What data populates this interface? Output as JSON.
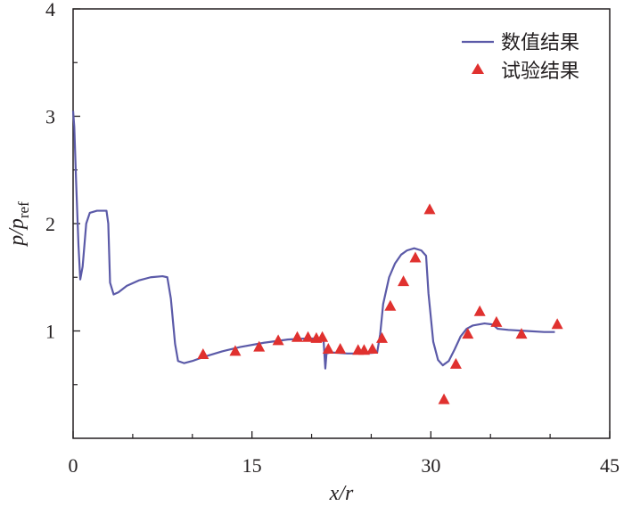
{
  "chart_data": {
    "type": "line",
    "title": "",
    "xlabel": "x/r",
    "ylabel_main": "p/p",
    "ylabel_sub": "ref",
    "xlim": [
      0,
      45
    ],
    "ylim": [
      0,
      4
    ],
    "x_ticks": [
      0,
      15,
      30,
      45
    ],
    "y_ticks": [
      1,
      2,
      3,
      4
    ],
    "x_tick_labels": [
      "0",
      "15",
      "30",
      "45"
    ],
    "y_tick_labels": [
      "1",
      "2",
      "3",
      "4"
    ],
    "grid": false,
    "legend_position": "top-right",
    "colors": {
      "line": "#5b5aa8",
      "marker": "#e0312f",
      "axis": "#231f20"
    },
    "series": [
      {
        "name": "数值结果",
        "kind": "line",
        "points": [
          [
            0.0,
            3.05
          ],
          [
            0.1,
            2.9
          ],
          [
            0.25,
            2.4
          ],
          [
            0.45,
            1.8
          ],
          [
            0.6,
            1.48
          ],
          [
            0.8,
            1.6
          ],
          [
            1.1,
            2.0
          ],
          [
            1.4,
            2.1
          ],
          [
            2.0,
            2.12
          ],
          [
            2.8,
            2.12
          ],
          [
            2.95,
            2.0
          ],
          [
            3.1,
            1.45
          ],
          [
            3.4,
            1.34
          ],
          [
            3.8,
            1.36
          ],
          [
            4.5,
            1.42
          ],
          [
            5.5,
            1.47
          ],
          [
            6.5,
            1.5
          ],
          [
            7.5,
            1.51
          ],
          [
            7.9,
            1.5
          ],
          [
            8.2,
            1.3
          ],
          [
            8.55,
            0.88
          ],
          [
            8.8,
            0.72
          ],
          [
            9.3,
            0.7
          ],
          [
            10.0,
            0.72
          ],
          [
            11.0,
            0.76
          ],
          [
            12.5,
            0.81
          ],
          [
            14.0,
            0.85
          ],
          [
            16.0,
            0.89
          ],
          [
            18.0,
            0.92
          ],
          [
            19.5,
            0.93
          ],
          [
            20.8,
            0.93
          ],
          [
            21.0,
            0.92
          ],
          [
            21.15,
            0.65
          ],
          [
            21.25,
            0.79
          ],
          [
            21.6,
            0.8
          ],
          [
            23.0,
            0.79
          ],
          [
            24.5,
            0.79
          ],
          [
            25.5,
            0.8
          ],
          [
            25.75,
            0.97
          ],
          [
            26.0,
            1.25
          ],
          [
            26.5,
            1.5
          ],
          [
            27.0,
            1.63
          ],
          [
            27.5,
            1.71
          ],
          [
            28.0,
            1.75
          ],
          [
            28.6,
            1.77
          ],
          [
            29.2,
            1.75
          ],
          [
            29.6,
            1.7
          ],
          [
            29.8,
            1.35
          ],
          [
            30.2,
            0.9
          ],
          [
            30.6,
            0.73
          ],
          [
            31.0,
            0.68
          ],
          [
            31.5,
            0.72
          ],
          [
            32.0,
            0.83
          ],
          [
            32.5,
            0.95
          ],
          [
            33.0,
            1.02
          ],
          [
            33.5,
            1.05
          ],
          [
            34.5,
            1.07
          ],
          [
            35.2,
            1.06
          ],
          [
            35.6,
            1.02
          ],
          [
            36.5,
            1.01
          ],
          [
            38.0,
            1.0
          ],
          [
            39.5,
            0.99
          ],
          [
            40.4,
            0.99
          ]
        ]
      },
      {
        "name": "试验结果",
        "kind": "scatter",
        "points": [
          [
            10.9,
            0.78
          ],
          [
            13.6,
            0.81
          ],
          [
            15.6,
            0.85
          ],
          [
            17.2,
            0.91
          ],
          [
            18.8,
            0.94
          ],
          [
            19.7,
            0.94
          ],
          [
            20.4,
            0.93
          ],
          [
            20.9,
            0.94
          ],
          [
            21.4,
            0.83
          ],
          [
            22.4,
            0.83
          ],
          [
            23.9,
            0.82
          ],
          [
            24.4,
            0.82
          ],
          [
            25.1,
            0.83
          ],
          [
            25.9,
            0.93
          ],
          [
            26.6,
            1.23
          ],
          [
            27.7,
            1.46
          ],
          [
            28.7,
            1.68
          ],
          [
            29.9,
            2.13
          ],
          [
            31.1,
            0.36
          ],
          [
            32.1,
            0.69
          ],
          [
            33.1,
            0.97
          ],
          [
            34.1,
            1.18
          ],
          [
            35.5,
            1.08
          ],
          [
            37.6,
            0.97
          ],
          [
            40.6,
            1.06
          ]
        ]
      }
    ]
  }
}
